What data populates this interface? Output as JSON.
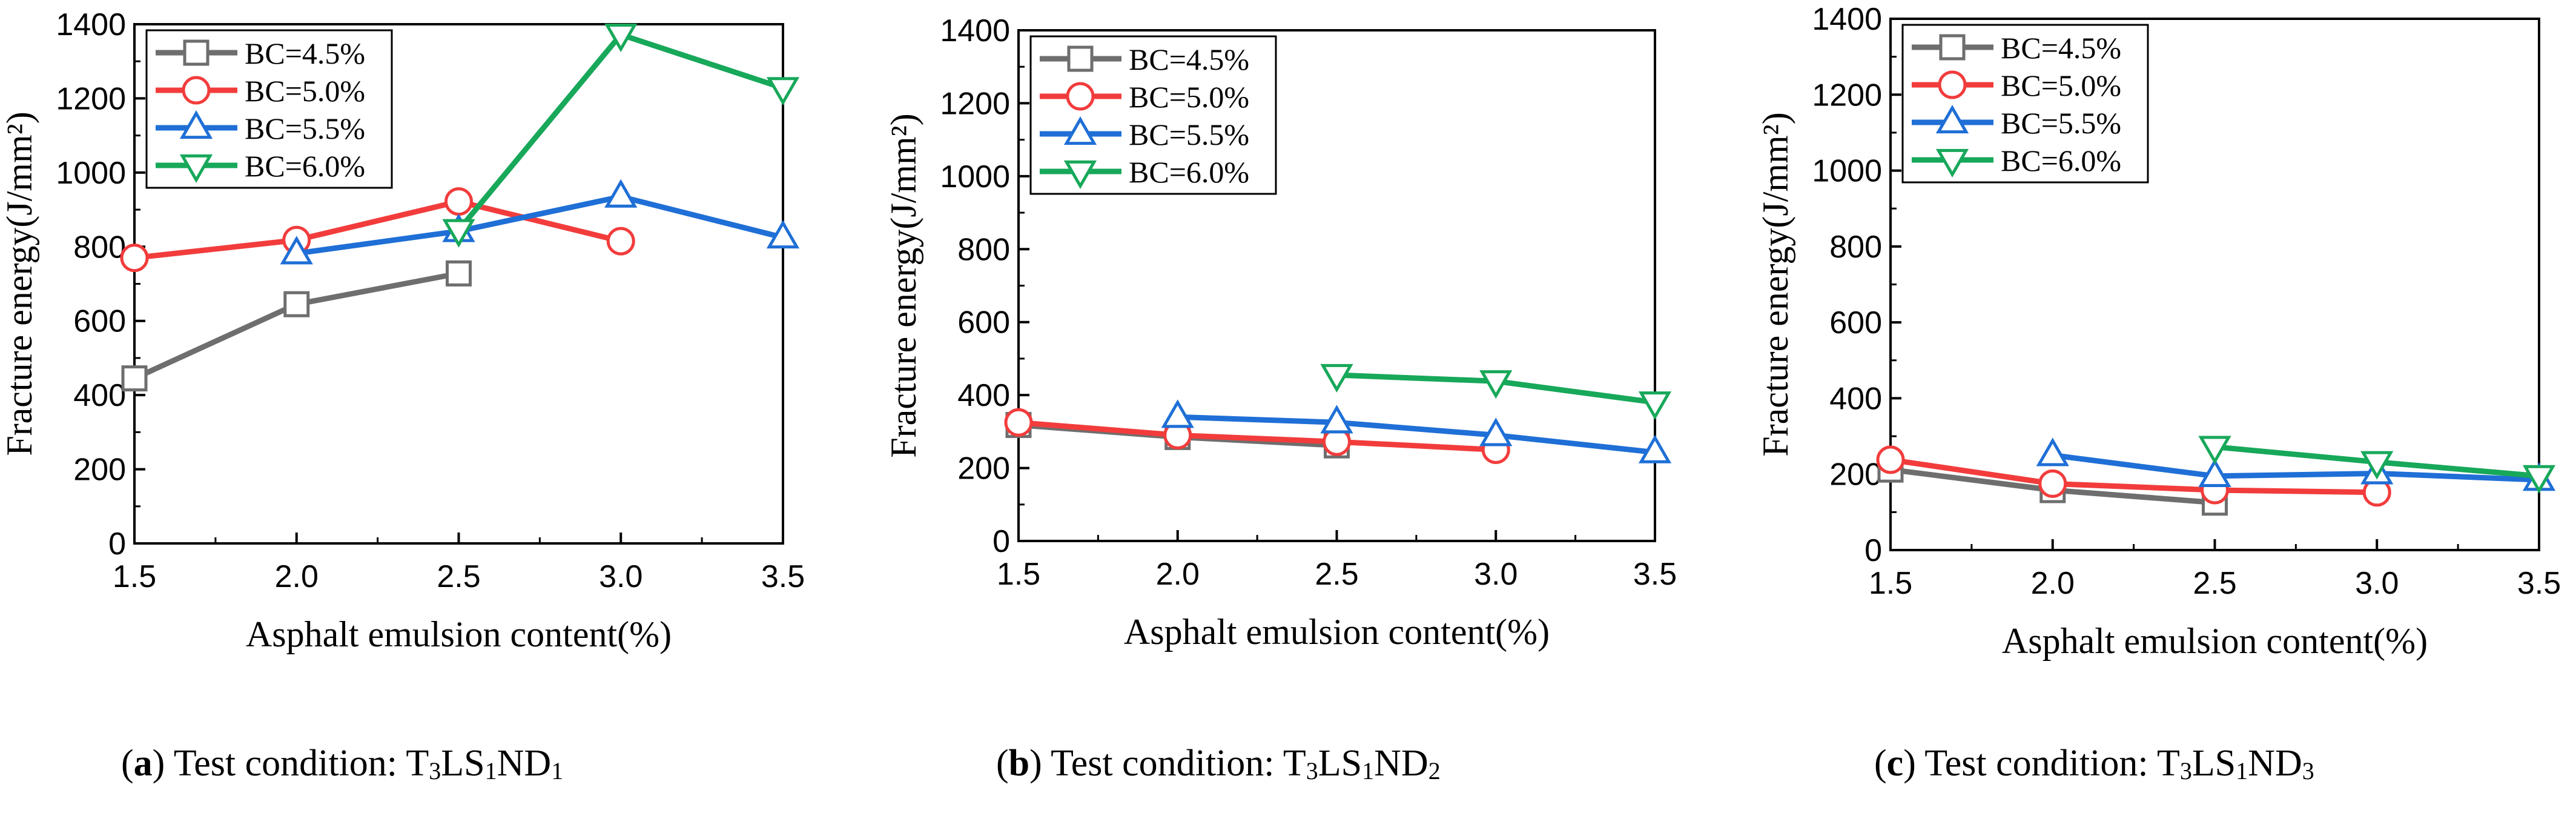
{
  "colors": {
    "BC=4.5%": "#6e6e6e",
    "BC=5.0%": "#f23c3c",
    "BC=5.5%": "#1f6fd6",
    "BC=6.0%": "#17a85a"
  },
  "chart_data": [
    {
      "type": "line",
      "title": "",
      "xlabel": "Asphalt emulsion content(%)",
      "ylabel": "Fracture energy(J/mm²)",
      "xlim": [
        1.5,
        3.5
      ],
      "ylim": [
        0,
        1400
      ],
      "xticks": [
        "1.5",
        "2.0",
        "2.5",
        "3.0",
        "3.5"
      ],
      "yticks": [
        "0",
        "200",
        "400",
        "600",
        "800",
        "1000",
        "1200",
        "1400"
      ],
      "legend": "top-left",
      "series": [
        {
          "name": "BC=4.5%",
          "marker": "square",
          "x": [
            1.5,
            2.0,
            2.5
          ],
          "values": [
            445,
            645,
            728
          ]
        },
        {
          "name": "BC=5.0%",
          "marker": "circle",
          "x": [
            1.5,
            2.0,
            2.5,
            3.0
          ],
          "values": [
            770,
            818,
            922,
            815
          ]
        },
        {
          "name": "BC=5.5%",
          "marker": "triangle-up",
          "x": [
            2.0,
            2.5,
            3.0,
            3.5
          ],
          "values": [
            782,
            842,
            935,
            825
          ]
        },
        {
          "name": "BC=6.0%",
          "marker": "triangle-down",
          "x": [
            2.5,
            3.0,
            3.5
          ],
          "values": [
            845,
            1372,
            1228
          ]
        }
      ],
      "caption": {
        "letter": "a",
        "text": " Test condition: T",
        "sub1": "3",
        "mid": "LS",
        "sub2": "1",
        "end": "ND",
        "sub3": "1"
      }
    },
    {
      "type": "line",
      "title": "",
      "xlabel": "Asphalt emulsion content(%)",
      "ylabel": "Fracture energy(J/mm²)",
      "xlim": [
        1.5,
        3.5
      ],
      "ylim": [
        0,
        1400
      ],
      "xticks": [
        "1.5",
        "2.0",
        "2.5",
        "3.0",
        "3.5"
      ],
      "yticks": [
        "0",
        "200",
        "400",
        "600",
        "800",
        "1000",
        "1200",
        "1400"
      ],
      "legend": "top-left",
      "series": [
        {
          "name": "BC=4.5%",
          "marker": "square",
          "x": [
            1.5,
            2.0,
            2.5
          ],
          "values": [
            318,
            285,
            262
          ]
        },
        {
          "name": "BC=5.0%",
          "marker": "circle",
          "x": [
            1.5,
            2.0,
            2.5,
            3.0
          ],
          "values": [
            325,
            290,
            272,
            250
          ]
        },
        {
          "name": "BC=5.5%",
          "marker": "triangle-up",
          "x": [
            2.0,
            2.5,
            3.0,
            3.5
          ],
          "values": [
            340,
            325,
            290,
            243
          ]
        },
        {
          "name": "BC=6.0%",
          "marker": "triangle-down",
          "x": [
            2.5,
            3.0,
            3.5
          ],
          "values": [
            455,
            438,
            380
          ]
        }
      ],
      "caption": {
        "letter": "b",
        "text": " Test condition: T",
        "sub1": "3",
        "mid": "LS",
        "sub2": "1",
        "end": "ND",
        "sub3": "2"
      }
    },
    {
      "type": "line",
      "title": "",
      "xlabel": "Asphalt emulsion content(%)",
      "ylabel": "Fracture energy(J/mm²)",
      "xlim": [
        1.5,
        3.5
      ],
      "ylim": [
        0,
        1400
      ],
      "xticks": [
        "1.5",
        "2.0",
        "2.5",
        "3.0",
        "3.5"
      ],
      "yticks": [
        "0",
        "200",
        "400",
        "600",
        "800",
        "1000",
        "1200",
        "1400"
      ],
      "legend": "top-left",
      "series": [
        {
          "name": "BC=4.5%",
          "marker": "square",
          "x": [
            1.5,
            2.0,
            2.5
          ],
          "values": [
            212,
            158,
            125
          ]
        },
        {
          "name": "BC=5.0%",
          "marker": "circle",
          "x": [
            1.5,
            2.0,
            2.5,
            3.0
          ],
          "values": [
            238,
            175,
            158,
            152
          ]
        },
        {
          "name": "BC=5.5%",
          "marker": "triangle-up",
          "x": [
            2.0,
            2.5,
            3.0,
            3.5
          ],
          "values": [
            250,
            195,
            202,
            185
          ]
        },
        {
          "name": "BC=6.0%",
          "marker": "triangle-down",
          "x": [
            2.5,
            3.0,
            3.5
          ],
          "values": [
            272,
            232,
            195
          ]
        }
      ],
      "caption": {
        "letter": "c",
        "text": " Test condition: T",
        "sub1": "3",
        "mid": "LS",
        "sub2": "1",
        "end": "ND",
        "sub3": "3"
      }
    }
  ]
}
